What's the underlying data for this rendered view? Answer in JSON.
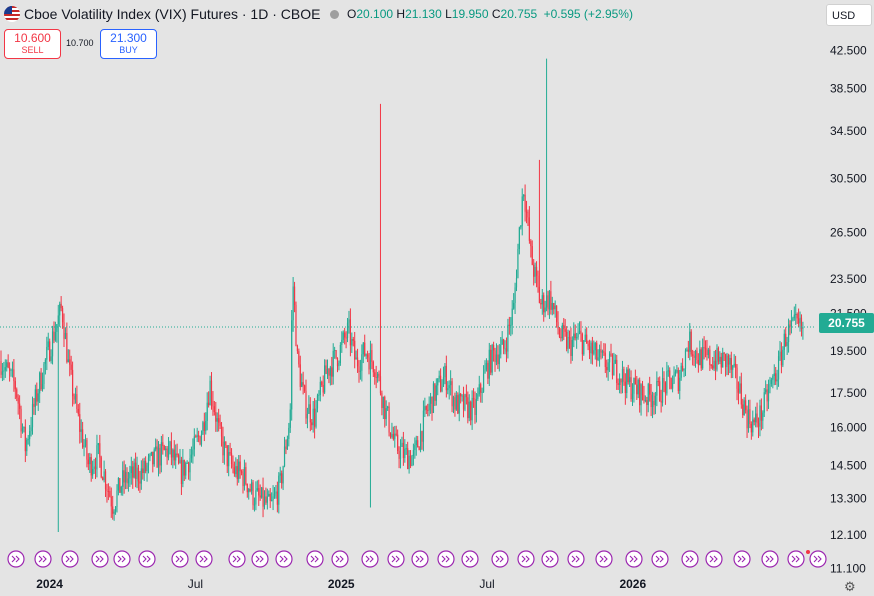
{
  "header": {
    "title": "Cboe Volatility Index (VIX) Futures · 1D · CBOE",
    "open_label": "O",
    "open": "20.100",
    "high_label": "H",
    "high": "21.130",
    "low_label": "L",
    "low": "19.950",
    "close_label": "C",
    "close": "20.755",
    "change": "+0.595 (+2.95%)"
  },
  "trade": {
    "sell_price": "10.600",
    "sell_label": "SELL",
    "spread": "10.700",
    "buy_price": "21.300",
    "buy_label": "BUY"
  },
  "currency": "USD",
  "last_price": "20.755",
  "colors": {
    "up": "#22ab94",
    "down": "#f23645",
    "event_marker": "#9c27b0",
    "price_line": "#22ab94"
  },
  "chart_data": {
    "type": "candlestick",
    "price_scale": "log",
    "y_ticks": [
      11.1,
      12.1,
      13.3,
      14.5,
      16.0,
      17.5,
      19.5,
      21.5,
      23.5,
      26.5,
      30.5,
      34.5,
      38.5,
      42.5
    ],
    "ylim": [
      11.0,
      44.8
    ],
    "x_ticks": [
      "2024",
      "Jul",
      "2025",
      "Jul",
      "2026"
    ],
    "bold_x_ticks": [
      "2024",
      "2025",
      "2026"
    ],
    "last_value": 20.755,
    "approximate_series": {
      "x_unit": "months since Nov 2023",
      "points": [
        [
          0.0,
          19.0
        ],
        [
          0.6,
          17.8
        ],
        [
          1.0,
          15.2
        ],
        [
          1.6,
          18.0
        ],
        [
          2.2,
          20.5
        ],
        [
          2.5,
          21.8
        ],
        [
          2.8,
          18.5
        ],
        [
          3.2,
          16.2
        ],
        [
          3.6,
          14.5
        ],
        [
          4.0,
          14.9
        ],
        [
          4.6,
          13.1
        ],
        [
          5.0,
          13.9
        ],
        [
          5.4,
          14.1
        ],
        [
          5.9,
          14.3
        ],
        [
          6.4,
          14.8
        ],
        [
          6.9,
          15.1
        ],
        [
          7.4,
          14.2
        ],
        [
          7.9,
          15.0
        ],
        [
          8.3,
          16.0
        ],
        [
          8.6,
          17.9
        ],
        [
          9.0,
          15.6
        ],
        [
          9.3,
          14.8
        ],
        [
          9.6,
          14.3
        ],
        [
          10.0,
          14.1
        ],
        [
          10.4,
          13.4
        ],
        [
          10.8,
          13.2
        ],
        [
          11.1,
          13.0
        ],
        [
          11.5,
          13.8
        ],
        [
          11.9,
          16.5
        ],
        [
          12.0,
          23.6
        ],
        [
          12.2,
          19.0
        ],
        [
          12.5,
          17.0
        ],
        [
          12.9,
          16.4
        ],
        [
          13.4,
          18.5
        ],
        [
          13.9,
          19.4
        ],
        [
          14.3,
          20.6
        ],
        [
          14.6,
          18.9
        ],
        [
          15.0,
          19.5
        ],
        [
          15.4,
          18.8
        ],
        [
          15.8,
          16.8
        ],
        [
          16.2,
          15.3
        ],
        [
          16.6,
          14.9
        ],
        [
          17.0,
          14.8
        ],
        [
          17.5,
          16.6
        ],
        [
          17.9,
          17.6
        ],
        [
          18.3,
          18.3
        ],
        [
          18.7,
          17.0
        ],
        [
          19.1,
          16.9
        ],
        [
          19.5,
          16.7
        ],
        [
          20.0,
          18.7
        ],
        [
          20.3,
          19.4
        ],
        [
          20.7,
          19.6
        ],
        [
          21.1,
          21.8
        ],
        [
          21.5,
          30.0
        ],
        [
          21.8,
          25.0
        ],
        [
          22.2,
          22.0
        ],
        [
          22.6,
          22.4
        ],
        [
          23.0,
          20.3
        ],
        [
          23.4,
          19.8
        ],
        [
          23.8,
          20.2
        ],
        [
          24.2,
          19.6
        ],
        [
          24.6,
          19.1
        ],
        [
          25.0,
          18.8
        ],
        [
          25.4,
          18.5
        ],
        [
          25.8,
          17.9
        ],
        [
          26.2,
          17.6
        ],
        [
          26.6,
          17.3
        ],
        [
          27.0,
          17.5
        ],
        [
          27.5,
          18.0
        ],
        [
          27.9,
          18.2
        ],
        [
          28.3,
          20.0
        ],
        [
          28.7,
          19.2
        ],
        [
          29.1,
          19.1
        ],
        [
          29.5,
          19.0
        ],
        [
          29.9,
          19.0
        ],
        [
          30.3,
          17.9
        ],
        [
          30.7,
          16.5
        ],
        [
          31.0,
          16.1
        ],
        [
          31.3,
          16.6
        ],
        [
          31.7,
          17.9
        ],
        [
          32.0,
          18.7
        ],
        [
          32.3,
          20.3
        ],
        [
          32.7,
          20.8
        ],
        [
          33.0,
          20.6
        ]
      ]
    }
  }
}
